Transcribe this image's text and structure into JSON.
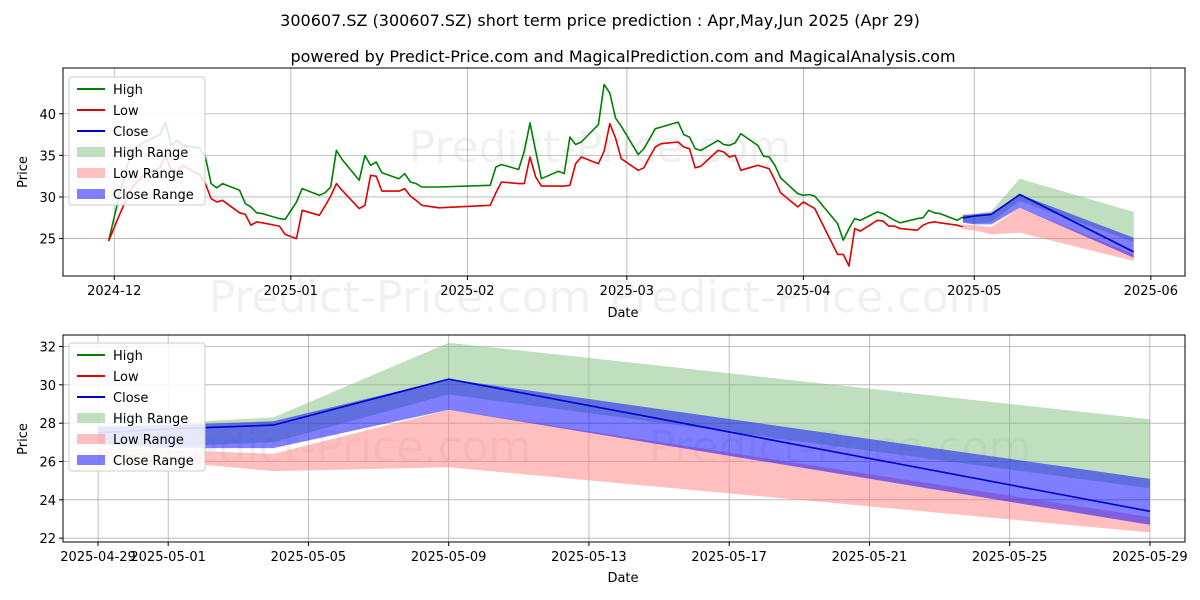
{
  "title": "300607.SZ (300607.SZ) short term price prediction : Apr,May,Jun 2025 (Apr 29)",
  "subtitle": "powered by Predict-Price.com and MagicalPrediction.com and MagicalAnalysis.com",
  "watermark": "Predict-Price.com",
  "colors": {
    "high": "#008000",
    "low": "#e00000",
    "close": "#0000cc",
    "high_range": "#7fbf7f",
    "low_range": "#ff7f7f",
    "close_range": "#0000ff"
  },
  "legend": [
    "High",
    "Low",
    "Close",
    "High Range",
    "Low Range",
    "Close Range"
  ],
  "chart_data": [
    {
      "type": "line",
      "xlabel": "Date",
      "ylabel": "Price",
      "xlim": [
        "2024-11-22",
        "2025-06-07"
      ],
      "ylim": [
        20.5,
        45.5
      ],
      "x_ticks": [
        "2024-12-01",
        "2025-01-01",
        "2025-02-01",
        "2025-03-01",
        "2025-04-01",
        "2025-05-01",
        "2025-06-01"
      ],
      "x_tick_labels": [
        "2024-12",
        "2025-01",
        "2025-02",
        "2025-03",
        "2025-04",
        "2025-05",
        "2025-06"
      ],
      "y_ticks": [
        25,
        30,
        35,
        40
      ],
      "grid": true,
      "legend_position": "upper-left",
      "series": [
        {
          "name": "High",
          "points": [
            [
              "2024-11-30",
              24.7
            ],
            [
              "2024-12-02",
              30.5
            ],
            [
              "2024-12-04",
              35.5
            ],
            [
              "2024-12-06",
              36.5
            ],
            [
              "2024-12-09",
              37.5
            ],
            [
              "2024-12-10",
              39.0
            ],
            [
              "2024-12-11",
              36.2
            ],
            [
              "2024-12-12",
              36.8
            ],
            [
              "2024-12-13",
              36.2
            ],
            [
              "2024-12-16",
              35.9
            ],
            [
              "2024-12-17",
              34.8
            ],
            [
              "2024-12-18",
              31.6
            ],
            [
              "2024-12-19",
              31.1
            ],
            [
              "2024-12-20",
              31.6
            ],
            [
              "2024-12-23",
              30.8
            ],
            [
              "2024-12-24",
              29.2
            ],
            [
              "2024-12-25",
              28.8
            ],
            [
              "2024-12-26",
              28.1
            ],
            [
              "2024-12-27",
              28.0
            ],
            [
              "2024-12-30",
              27.4
            ],
            [
              "2024-12-31",
              27.3
            ],
            [
              "2025-01-02",
              29.4
            ],
            [
              "2025-01-03",
              31.0
            ],
            [
              "2025-01-06",
              30.2
            ],
            [
              "2025-01-07",
              30.5
            ],
            [
              "2025-01-08",
              31.2
            ],
            [
              "2025-01-09",
              35.6
            ],
            [
              "2025-01-10",
              34.5
            ],
            [
              "2025-01-13",
              32.0
            ],
            [
              "2025-01-14",
              35.0
            ],
            [
              "2025-01-15",
              33.8
            ],
            [
              "2025-01-16",
              34.2
            ],
            [
              "2025-01-17",
              32.9
            ],
            [
              "2025-01-20",
              32.2
            ],
            [
              "2025-01-21",
              32.8
            ],
            [
              "2025-01-22",
              31.8
            ],
            [
              "2025-01-23",
              31.6
            ],
            [
              "2025-01-24",
              31.2
            ],
            [
              "2025-01-27",
              31.2
            ],
            [
              "2025-02-05",
              31.4
            ],
            [
              "2025-02-06",
              33.6
            ],
            [
              "2025-02-07",
              33.9
            ],
            [
              "2025-02-10",
              33.3
            ],
            [
              "2025-02-11",
              35.5
            ],
            [
              "2025-02-12",
              38.9
            ],
            [
              "2025-02-13",
              35.5
            ],
            [
              "2025-02-14",
              32.2
            ],
            [
              "2025-02-17",
              33.1
            ],
            [
              "2025-02-18",
              32.8
            ],
            [
              "2025-02-19",
              37.2
            ],
            [
              "2025-02-20",
              36.3
            ],
            [
              "2025-02-21",
              36.6
            ],
            [
              "2025-02-24",
              38.7
            ],
            [
              "2025-02-25",
              43.5
            ],
            [
              "2025-02-26",
              42.5
            ],
            [
              "2025-02-27",
              39.5
            ],
            [
              "2025-02-28",
              38.5
            ],
            [
              "2025-03-03",
              35.1
            ],
            [
              "2025-03-04",
              35.8
            ],
            [
              "2025-03-05",
              37.0
            ],
            [
              "2025-03-06",
              38.2
            ],
            [
              "2025-03-07",
              38.4
            ],
            [
              "2025-03-10",
              39.0
            ],
            [
              "2025-03-11",
              37.5
            ],
            [
              "2025-03-12",
              37.2
            ],
            [
              "2025-03-13",
              35.8
            ],
            [
              "2025-03-14",
              35.6
            ],
            [
              "2025-03-17",
              36.8
            ],
            [
              "2025-03-18",
              36.3
            ],
            [
              "2025-03-19",
              36.2
            ],
            [
              "2025-03-20",
              36.5
            ],
            [
              "2025-03-21",
              37.6
            ],
            [
              "2025-03-24",
              36.2
            ],
            [
              "2025-03-25",
              34.9
            ],
            [
              "2025-03-26",
              34.8
            ],
            [
              "2025-03-27",
              33.8
            ],
            [
              "2025-03-28",
              32.3
            ],
            [
              "2025-03-31",
              30.4
            ],
            [
              "2025-04-01",
              30.2
            ],
            [
              "2025-04-02",
              30.3
            ],
            [
              "2025-04-03",
              30.1
            ],
            [
              "2025-04-07",
              26.8
            ],
            [
              "2025-04-08",
              24.8
            ],
            [
              "2025-04-09",
              26.2
            ],
            [
              "2025-04-10",
              27.4
            ],
            [
              "2025-04-11",
              27.2
            ],
            [
              "2025-04-14",
              28.2
            ],
            [
              "2025-04-15",
              28.0
            ],
            [
              "2025-04-16",
              27.6
            ],
            [
              "2025-04-17",
              27.2
            ],
            [
              "2025-04-18",
              26.9
            ],
            [
              "2025-04-21",
              27.4
            ],
            [
              "2025-04-22",
              27.5
            ],
            [
              "2025-04-23",
              28.4
            ],
            [
              "2025-04-24",
              28.1
            ],
            [
              "2025-04-25",
              28.0
            ],
            [
              "2025-04-28",
              27.2
            ],
            [
              "2025-04-29",
              27.6
            ]
          ]
        },
        {
          "name": "Low",
          "points": [
            [
              "2024-11-30",
              24.7
            ],
            [
              "2024-12-02",
              28.0
            ],
            [
              "2024-12-04",
              31.0
            ],
            [
              "2024-12-06",
              32.5
            ],
            [
              "2024-12-09",
              33.5
            ],
            [
              "2024-12-10",
              35.0
            ],
            [
              "2024-12-11",
              33.2
            ],
            [
              "2024-12-12",
              33.0
            ],
            [
              "2024-12-13",
              33.8
            ],
            [
              "2024-12-16",
              32.6
            ],
            [
              "2024-12-17",
              31.6
            ],
            [
              "2024-12-18",
              29.8
            ],
            [
              "2024-12-19",
              29.4
            ],
            [
              "2024-12-20",
              29.6
            ],
            [
              "2024-12-23",
              28.1
            ],
            [
              "2024-12-24",
              27.9
            ],
            [
              "2024-12-25",
              26.6
            ],
            [
              "2024-12-26",
              27.0
            ],
            [
              "2024-12-27",
              26.9
            ],
            [
              "2024-12-30",
              26.5
            ],
            [
              "2024-12-31",
              25.5
            ],
            [
              "2025-01-02",
              25.0
            ],
            [
              "2025-01-03",
              28.4
            ],
            [
              "2025-01-06",
              27.8
            ],
            [
              "2025-01-07",
              28.9
            ],
            [
              "2025-01-08",
              30.1
            ],
            [
              "2025-01-09",
              31.6
            ],
            [
              "2025-01-10",
              30.8
            ],
            [
              "2025-01-13",
              28.6
            ],
            [
              "2025-01-14",
              29.0
            ],
            [
              "2025-01-15",
              32.6
            ],
            [
              "2025-01-16",
              32.5
            ],
            [
              "2025-01-17",
              30.7
            ],
            [
              "2025-01-20",
              30.7
            ],
            [
              "2025-01-21",
              31.0
            ],
            [
              "2025-01-22",
              30.1
            ],
            [
              "2025-01-23",
              29.6
            ],
            [
              "2025-01-24",
              29.0
            ],
            [
              "2025-01-27",
              28.7
            ],
            [
              "2025-02-05",
              29.0
            ],
            [
              "2025-02-06",
              30.5
            ],
            [
              "2025-02-07",
              31.8
            ],
            [
              "2025-02-10",
              31.6
            ],
            [
              "2025-02-11",
              31.6
            ],
            [
              "2025-02-12",
              34.8
            ],
            [
              "2025-02-13",
              32.4
            ],
            [
              "2025-02-14",
              31.3
            ],
            [
              "2025-02-17",
              31.3
            ],
            [
              "2025-02-18",
              31.3
            ],
            [
              "2025-02-19",
              31.4
            ],
            [
              "2025-02-20",
              34.0
            ],
            [
              "2025-02-21",
              34.8
            ],
            [
              "2025-02-24",
              34.0
            ],
            [
              "2025-02-25",
              35.5
            ],
            [
              "2025-02-26",
              38.8
            ],
            [
              "2025-02-27",
              37.1
            ],
            [
              "2025-02-28",
              34.6
            ],
            [
              "2025-03-03",
              33.2
            ],
            [
              "2025-03-04",
              33.5
            ],
            [
              "2025-03-05",
              34.8
            ],
            [
              "2025-03-06",
              36.0
            ],
            [
              "2025-03-07",
              36.4
            ],
            [
              "2025-03-10",
              36.6
            ],
            [
              "2025-03-11",
              36.0
            ],
            [
              "2025-03-12",
              35.8
            ],
            [
              "2025-03-13",
              33.5
            ],
            [
              "2025-03-14",
              33.7
            ],
            [
              "2025-03-17",
              35.6
            ],
            [
              "2025-03-18",
              35.4
            ],
            [
              "2025-03-19",
              34.8
            ],
            [
              "2025-03-20",
              35.0
            ],
            [
              "2025-03-21",
              33.2
            ],
            [
              "2025-03-24",
              33.8
            ],
            [
              "2025-03-25",
              33.6
            ],
            [
              "2025-03-26",
              33.4
            ],
            [
              "2025-03-27",
              32.0
            ],
            [
              "2025-03-28",
              30.5
            ],
            [
              "2025-03-31",
              28.8
            ],
            [
              "2025-04-01",
              29.4
            ],
            [
              "2025-04-02",
              29.0
            ],
            [
              "2025-04-03",
              28.6
            ],
            [
              "2025-04-07",
              23.1
            ],
            [
              "2025-04-08",
              23.1
            ],
            [
              "2025-04-09",
              21.7
            ],
            [
              "2025-04-10",
              26.2
            ],
            [
              "2025-04-11",
              25.9
            ],
            [
              "2025-04-14",
              27.2
            ],
            [
              "2025-04-15",
              27.1
            ],
            [
              "2025-04-16",
              26.5
            ],
            [
              "2025-04-17",
              26.5
            ],
            [
              "2025-04-18",
              26.2
            ],
            [
              "2025-04-21",
              26.0
            ],
            [
              "2025-04-22",
              26.6
            ],
            [
              "2025-04-23",
              26.9
            ],
            [
              "2025-04-24",
              27.0
            ],
            [
              "2025-04-25",
              26.9
            ],
            [
              "2025-04-28",
              26.6
            ],
            [
              "2025-04-29",
              26.4
            ]
          ]
        }
      ],
      "prediction": {
        "dates": [
          "2025-04-29",
          "2025-05-01",
          "2025-05-04",
          "2025-05-09",
          "2025-05-29"
        ],
        "close": [
          27.5,
          27.7,
          27.9,
          30.3,
          23.4
        ],
        "high_range": [
          [
            27.0,
            27.9
          ],
          [
            26.8,
            28.0
          ],
          [
            27.0,
            28.3
          ],
          [
            29.5,
            32.2
          ],
          [
            24.6,
            28.2
          ]
        ],
        "low_range": [
          [
            26.1,
            26.7
          ],
          [
            26.0,
            26.6
          ],
          [
            25.5,
            26.4
          ],
          [
            25.7,
            28.7
          ],
          [
            22.3,
            23.1
          ]
        ],
        "close_range": [
          [
            26.9,
            27.8
          ],
          [
            26.7,
            27.9
          ],
          [
            26.7,
            28.1
          ],
          [
            28.7,
            30.3
          ],
          [
            22.7,
            25.1
          ]
        ]
      }
    },
    {
      "type": "area",
      "xlabel": "Date",
      "ylabel": "Price",
      "xlim": [
        "2025-04-28",
        "2025-05-30"
      ],
      "ylim": [
        21.8,
        32.6
      ],
      "x_ticks": [
        "2025-04-29",
        "2025-05-01",
        "2025-05-05",
        "2025-05-09",
        "2025-05-13",
        "2025-05-17",
        "2025-05-21",
        "2025-05-25",
        "2025-05-29"
      ],
      "y_ticks": [
        22,
        24,
        26,
        28,
        30,
        32
      ],
      "grid": true,
      "legend_position": "upper-left",
      "x": [
        "2025-04-29",
        "2025-05-01",
        "2025-05-04",
        "2025-05-09",
        "2025-05-29"
      ],
      "close": [
        27.5,
        27.7,
        27.9,
        30.3,
        23.4
      ],
      "high_range": [
        [
          27.0,
          27.9
        ],
        [
          26.8,
          28.0
        ],
        [
          27.0,
          28.3
        ],
        [
          29.5,
          32.2
        ],
        [
          24.6,
          28.2
        ]
      ],
      "low_range": [
        [
          26.1,
          26.7
        ],
        [
          26.0,
          26.6
        ],
        [
          25.5,
          26.4
        ],
        [
          25.7,
          28.7
        ],
        [
          22.3,
          23.1
        ]
      ],
      "close_range": [
        [
          26.9,
          27.8
        ],
        [
          26.7,
          27.9
        ],
        [
          26.7,
          28.1
        ],
        [
          28.7,
          30.3
        ],
        [
          22.7,
          25.1
        ]
      ]
    }
  ]
}
